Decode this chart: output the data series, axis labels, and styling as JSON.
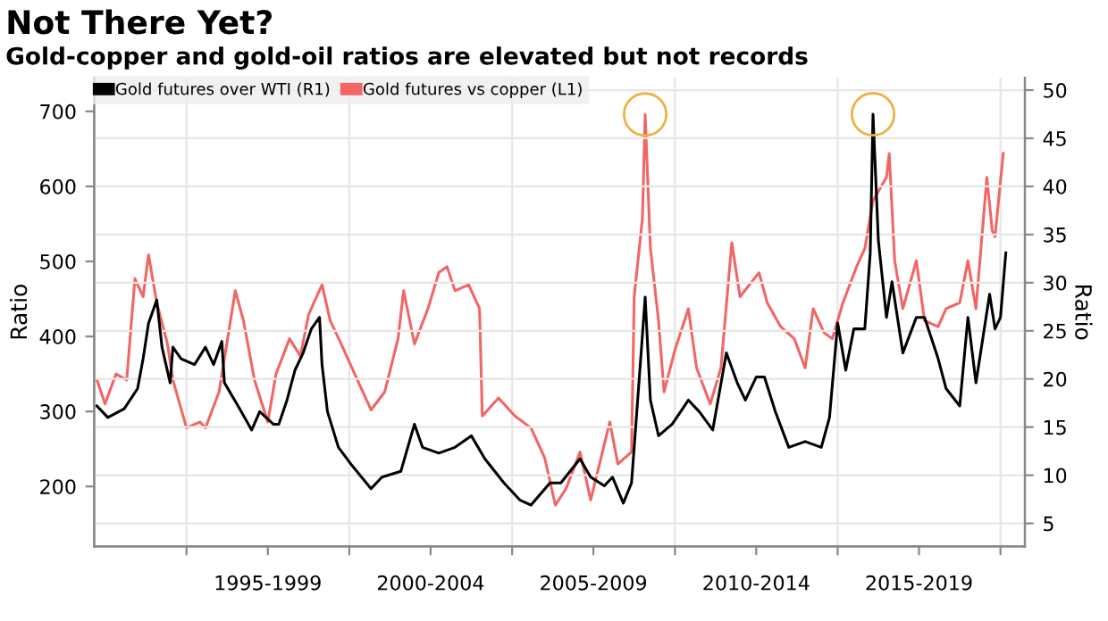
{
  "chart_data": {
    "type": "line",
    "title": "Not There Yet?",
    "subtitle": "Gold-copper and gold-oil ratios are elevated but not records",
    "ylabel": "Ratio",
    "y2label": "Ratio",
    "xlim": [
      "1992-03",
      "2020-10"
    ],
    "xticks": [
      {
        "value": "1995-01",
        "label": null
      },
      {
        "value": "1997-07",
        "label": "1995-1999"
      },
      {
        "value": "2000-01",
        "label": null
      },
      {
        "value": "2002-07",
        "label": "2000-2004"
      },
      {
        "value": "2005-01",
        "label": null
      },
      {
        "value": "2007-07",
        "label": "2005-2009"
      },
      {
        "value": "2010-01",
        "label": null
      },
      {
        "value": "2012-07",
        "label": "2010-2014"
      },
      {
        "value": "2015-01",
        "label": null
      },
      {
        "value": "2017-07",
        "label": "2015-2019"
      },
      {
        "value": "2020-01",
        "label": null
      }
    ],
    "ylim": [
      120,
      745
    ],
    "yticks": [
      200,
      300,
      400,
      500,
      600,
      700
    ],
    "y2lim": [
      2.6,
      51.3
    ],
    "y2ticks": [
      5,
      10,
      15,
      20,
      25,
      30,
      35,
      40,
      45,
      50
    ],
    "grid": true,
    "legend": "top left",
    "series": [
      {
        "name": "Gold futures over WTI (R1)",
        "color": "#000000",
        "axis": "y2",
        "x": [
          "1992-04",
          "1992-08",
          "1993-02",
          "1993-07",
          "1993-09",
          "1993-11",
          "1994-02",
          "1994-04",
          "1994-07",
          "1994-08",
          "1994-11",
          "1995-04",
          "1995-08",
          "1995-11",
          "1996-02",
          "1996-03",
          "1996-08",
          "1997-01",
          "1997-04",
          "1997-09",
          "1997-11",
          "1998-02",
          "1998-05",
          "1998-08",
          "1998-11",
          "1999-02",
          "1999-03",
          "1999-05",
          "1999-09",
          "2000-02",
          "2000-09",
          "2001-01",
          "2001-08",
          "2002-01",
          "2002-04",
          "2002-10",
          "2003-04",
          "2003-10",
          "2004-03",
          "2004-10",
          "2005-04",
          "2005-08",
          "2006-03",
          "2006-07",
          "2007-02",
          "2007-06",
          "2007-11",
          "2008-02",
          "2008-06",
          "2008-09",
          "2008-10",
          "2009-01",
          "2009-02",
          "2009-04",
          "2009-07",
          "2009-12",
          "2010-06",
          "2010-10",
          "2011-03",
          "2011-08",
          "2011-12",
          "2012-03",
          "2012-07",
          "2012-10",
          "2013-02",
          "2013-07",
          "2014-01",
          "2014-07",
          "2014-10",
          "2015-01",
          "2015-04",
          "2015-07",
          "2015-11",
          "2016-01",
          "2016-02",
          "2016-04",
          "2016-07",
          "2016-09",
          "2017-01",
          "2017-06",
          "2017-09",
          "2018-02",
          "2018-05",
          "2018-10",
          "2019-01",
          "2019-04",
          "2019-09",
          "2019-11",
          "2020-01",
          "2020-03"
        ],
        "values": [
          17.2,
          16.0,
          16.9,
          19.0,
          22.1,
          25.8,
          28.2,
          23.3,
          19.6,
          23.3,
          22.1,
          21.5,
          23.3,
          21.5,
          23.9,
          19.6,
          17.2,
          14.7,
          16.6,
          15.3,
          15.3,
          17.8,
          20.9,
          22.7,
          25.2,
          26.4,
          21.5,
          16.6,
          12.9,
          11.0,
          8.6,
          9.8,
          10.4,
          15.3,
          12.9,
          12.3,
          12.9,
          14.1,
          11.7,
          9.2,
          7.4,
          6.9,
          9.2,
          9.2,
          11.7,
          9.8,
          8.9,
          9.8,
          7.1,
          9.2,
          12.9,
          24.5,
          28.5,
          17.8,
          14.1,
          15.3,
          17.8,
          16.6,
          14.7,
          22.7,
          19.6,
          17.8,
          20.2,
          20.2,
          16.6,
          12.9,
          13.5,
          12.9,
          16.0,
          25.8,
          20.9,
          25.2,
          25.2,
          33.1,
          47.5,
          34.4,
          26.4,
          30.1,
          22.7,
          26.4,
          26.4,
          22.1,
          19.0,
          17.2,
          26.4,
          19.6,
          28.8,
          25.2,
          26.4,
          33.1
        ]
      },
      {
        "name": "Gold futures vs copper (L1)",
        "color": "#f26565",
        "x": [
          "1992-04",
          "1992-07",
          "1992-11",
          "1993-03",
          "1993-06",
          "1993-09",
          "1993-11",
          "1994-02",
          "1994-06",
          "1994-08",
          "1995-01",
          "1995-06",
          "1995-08",
          "1996-01",
          "1996-07",
          "1996-10",
          "1997-02",
          "1997-07",
          "1997-10",
          "1998-03",
          "1998-07",
          "1998-10",
          "1999-03",
          "1999-06",
          "1999-10",
          "2000-04",
          "2000-09",
          "2001-02",
          "2001-07",
          "2001-09",
          "2002-01",
          "2002-06",
          "2002-10",
          "2003-01",
          "2003-04",
          "2003-09",
          "2004-01",
          "2004-02",
          "2004-08",
          "2005-02",
          "2005-08",
          "2006-01",
          "2006-05",
          "2006-09",
          "2007-02",
          "2007-06",
          "2008-01",
          "2008-04",
          "2008-09",
          "2008-10",
          "2009-01",
          "2009-02",
          "2009-04",
          "2009-07",
          "2009-09",
          "2010-01",
          "2010-06",
          "2010-09",
          "2011-02",
          "2011-06",
          "2011-10",
          "2012-01",
          "2012-08",
          "2012-11",
          "2013-04",
          "2013-09",
          "2014-01",
          "2014-04",
          "2014-08",
          "2014-11",
          "2015-03",
          "2015-08",
          "2015-11",
          "2016-02",
          "2016-07",
          "2016-08",
          "2016-10",
          "2017-01",
          "2017-06",
          "2017-09",
          "2018-02",
          "2018-05",
          "2018-10",
          "2019-01",
          "2019-04",
          "2019-08",
          "2019-10",
          "2019-11",
          "2020-02"
        ],
        "values": [
          342,
          310,
          350,
          342,
          477,
          453,
          509,
          445,
          390,
          342,
          278,
          286,
          278,
          326,
          461,
          421,
          342,
          286,
          350,
          397,
          374,
          429,
          469,
          421,
          390,
          342,
          302,
          326,
          397,
          461,
          390,
          437,
          485,
          493,
          461,
          469,
          437,
          294,
          318,
          294,
          278,
          238,
          175,
          198,
          246,
          182,
          286,
          230,
          246,
          453,
          557,
          696,
          517,
          421,
          326,
          382,
          437,
          358,
          310,
          358,
          525,
          453,
          485,
          445,
          413,
          397,
          358,
          437,
          405,
          397,
          445,
          493,
          517,
          581,
          612,
          644,
          501,
          437,
          501,
          421,
          413,
          437,
          445,
          501,
          437,
          612,
          541,
          533,
          644
        ]
      }
    ]
  }
}
